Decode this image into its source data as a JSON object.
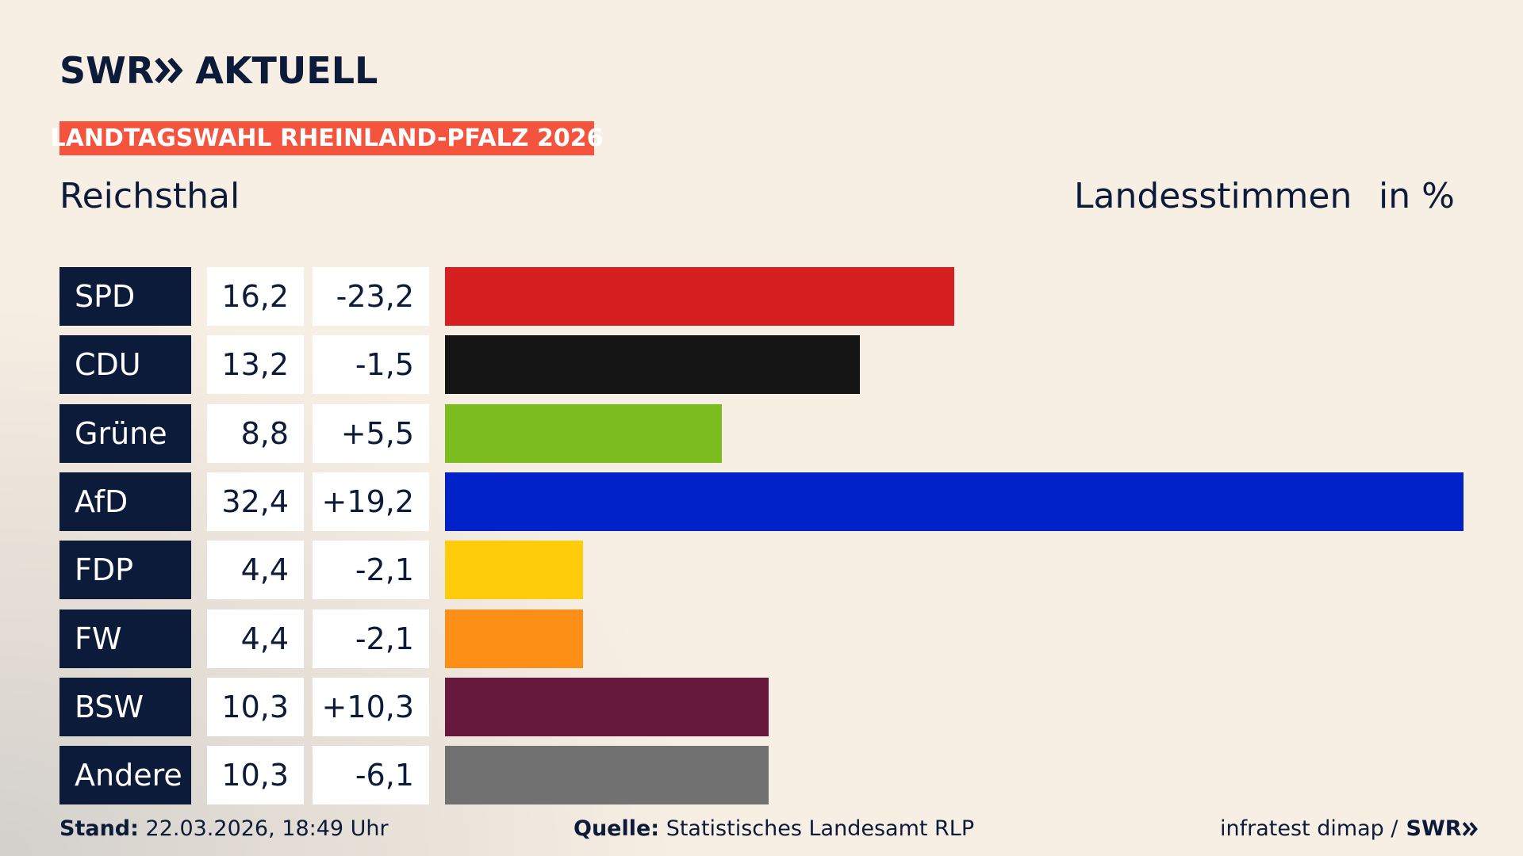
{
  "chart_data": {
    "type": "bar",
    "brand": "SWR",
    "brand_suffix": "AKTUELL",
    "badge": "LANDTAGSWAHL RHEINLAND-PFALZ 2026",
    "title": "Reichsthal",
    "subtitle": "Landesstimmen",
    "unit": "in %",
    "categories": [
      "SPD",
      "CDU",
      "Grüne",
      "AfD",
      "FDP",
      "FW",
      "BSW",
      "Andere"
    ],
    "values": [
      16.2,
      13.2,
      8.8,
      32.4,
      4.4,
      4.4,
      10.3,
      10.3
    ],
    "value_labels": [
      "16,2",
      "13,2",
      "8,8",
      "32,4",
      "4,4",
      "4,4",
      "10,3",
      "10,3"
    ],
    "changes": [
      "-23,2",
      "-1,5",
      "+5,5",
      "+19,2",
      "-2,1",
      "-2,1",
      "+10,3",
      "-6,1"
    ],
    "colors": [
      "#d51f20",
      "#141414",
      "#7bbc1f",
      "#0022c8",
      "#fecc0a",
      "#fe8f16",
      "#671a3e",
      "#717171"
    ],
    "footer": {
      "stand_label": "Stand:",
      "stand": "22.03.2026, 18:49 Uhr",
      "source_label": "Quelle:",
      "source": "Statistisches Landesamt RLP",
      "credit": "infratest dimap /",
      "credit_brand": "SWR"
    }
  }
}
